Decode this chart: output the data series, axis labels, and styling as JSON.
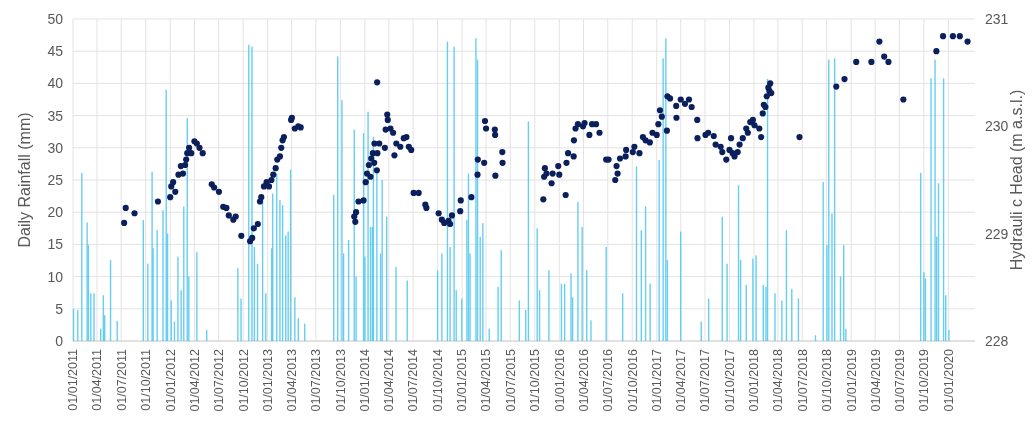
{
  "chart_data": {
    "type": "bar",
    "ylabel": "Daily Rainfall  (mm)",
    "y2label": "Hydrauli c Head (m a.s.l.)",
    "grid": true,
    "xlim": [
      "2011-01-01",
      "2020-04-10"
    ],
    "xticks": [
      {
        "value": "2011-01-01",
        "label": "01/01/2011"
      },
      {
        "value": "2011-04-01",
        "label": "01/04/2011"
      },
      {
        "value": "2011-07-01",
        "label": "01/07/2011"
      },
      {
        "value": "2011-10-01",
        "label": "01/10/2011"
      },
      {
        "value": "2012-01-01",
        "label": "01/01/2012"
      },
      {
        "value": "2012-04-01",
        "label": "01/04/2012"
      },
      {
        "value": "2012-07-01",
        "label": "01/07/2012"
      },
      {
        "value": "2012-10-01",
        "label": "01/10/2012"
      },
      {
        "value": "2013-01-01",
        "label": "01/01/2013"
      },
      {
        "value": "2013-04-01",
        "label": "01/04/2013"
      },
      {
        "value": "2013-07-01",
        "label": "01/07/2013"
      },
      {
        "value": "2013-10-01",
        "label": "01/10/2013"
      },
      {
        "value": "2014-01-01",
        "label": "01/01/2014"
      },
      {
        "value": "2014-04-01",
        "label": "01/04/2014"
      },
      {
        "value": "2014-07-01",
        "label": "01/07/2014"
      },
      {
        "value": "2014-10-01",
        "label": "01/10/2014"
      },
      {
        "value": "2015-01-01",
        "label": "01/01/2015"
      },
      {
        "value": "2015-04-01",
        "label": "01/04/2015"
      },
      {
        "value": "2015-07-01",
        "label": "01/07/2015"
      },
      {
        "value": "2015-10-01",
        "label": "01/10/2015"
      },
      {
        "value": "2016-01-01",
        "label": "01/01/2016"
      },
      {
        "value": "2016-04-01",
        "label": "01/04/2016"
      },
      {
        "value": "2016-07-01",
        "label": "01/07/2016"
      },
      {
        "value": "2016-10-01",
        "label": "01/10/2016"
      },
      {
        "value": "2017-01-01",
        "label": "01/01/2017"
      },
      {
        "value": "2017-04-01",
        "label": "01/04/2017"
      },
      {
        "value": "2017-07-01",
        "label": "01/07/2017"
      },
      {
        "value": "2017-10-01",
        "label": "01/10/2017"
      },
      {
        "value": "2018-01-01",
        "label": "01/01/2018"
      },
      {
        "value": "2018-04-01",
        "label": "01/04/2018"
      },
      {
        "value": "2018-07-01",
        "label": "01/07/2018"
      },
      {
        "value": "2018-10-01",
        "label": "01/10/2018"
      },
      {
        "value": "2019-01-01",
        "label": "01/01/2019"
      },
      {
        "value": "2019-04-01",
        "label": "01/04/2019"
      },
      {
        "value": "2019-07-01",
        "label": "01/07/2019"
      },
      {
        "value": "2019-10-01",
        "label": "01/10/2019"
      },
      {
        "value": "2020-01-01",
        "label": "01/01/2020"
      }
    ],
    "ylim": [
      0,
      50
    ],
    "yticks": [
      0,
      5,
      10,
      15,
      20,
      25,
      30,
      35,
      40,
      45,
      50
    ],
    "y2lim": [
      228,
      231
    ],
    "y2ticks": [
      228,
      229,
      230,
      231
    ],
    "series": [
      {
        "color": "#4cc6f0",
        "x": [
          "2011-01-03",
          "2011-01-19",
          "2011-02-03",
          "2011-02-23",
          "2011-02-28",
          "2011-03-09",
          "2011-03-21",
          "2011-04-15",
          "2011-04-25",
          "2011-04-30",
          "2011-05-22",
          "2011-06-16",
          "2011-09-22",
          "2011-10-09",
          "2011-10-25",
          "2011-10-29",
          "2011-11-13",
          "2011-12-05",
          "2011-12-17",
          "2011-12-22",
          "2012-01-05",
          "2012-01-17",
          "2012-01-30",
          "2012-02-11",
          "2012-02-21",
          "2012-03-05",
          "2012-03-11",
          "2012-04-10",
          "2012-05-17",
          "2012-09-11",
          "2012-09-23",
          "2012-10-22",
          "2012-11-03",
          "2012-11-12",
          "2012-11-24",
          "2012-12-13",
          "2012-12-25",
          "2013-01-16",
          "2013-01-20",
          "2013-02-04",
          "2013-02-16",
          "2013-02-26",
          "2013-03-10",
          "2013-03-19",
          "2013-03-28",
          "2013-04-13",
          "2013-04-26",
          "2013-05-20",
          "2013-09-06",
          "2013-09-21",
          "2013-10-07",
          "2013-10-13",
          "2013-11-01",
          "2013-11-22",
          "2013-11-29",
          "2013-12-27",
          "2014-01-01",
          "2014-01-13",
          "2014-01-22",
          "2014-01-29",
          "2014-02-02",
          "2014-02-15",
          "2014-03-01",
          "2014-03-07",
          "2014-03-24",
          "2014-04-28",
          "2014-06-09",
          "2014-10-01",
          "2014-10-17",
          "2014-11-07",
          "2014-11-17",
          "2014-12-02",
          "2014-12-10",
          "2014-12-31",
          "2015-01-19",
          "2015-01-25",
          "2015-01-31",
          "2015-02-22",
          "2015-02-28",
          "2015-03-10",
          "2015-03-20",
          "2015-04-13",
          "2015-05-16",
          "2015-05-28",
          "2015-08-04",
          "2015-08-28",
          "2015-09-07",
          "2015-10-10",
          "2015-10-19",
          "2015-11-23",
          "2016-01-09",
          "2016-01-21",
          "2016-02-14",
          "2016-02-20",
          "2016-03-11",
          "2016-03-27",
          "2016-04-13",
          "2016-04-29",
          "2016-06-25",
          "2016-08-26",
          "2016-10-17",
          "2016-11-04",
          "2016-11-20",
          "2016-12-07",
          "2017-01-10",
          "2017-01-25",
          "2017-02-04",
          "2017-02-10",
          "2017-04-01",
          "2017-06-17",
          "2017-07-15",
          "2017-09-04",
          "2017-09-22",
          "2017-11-04",
          "2017-11-12",
          "2017-12-03",
          "2017-12-28",
          "2018-01-09",
          "2018-02-05",
          "2018-02-15",
          "2018-02-21",
          "2018-03-21",
          "2018-04-16",
          "2018-05-03",
          "2018-05-23",
          "2018-06-17",
          "2018-08-20",
          "2018-09-18",
          "2018-10-02",
          "2018-10-09",
          "2018-10-21",
          "2018-10-31",
          "2018-11-22",
          "2018-12-04",
          "2018-12-12",
          "2019-09-19",
          "2019-10-01",
          "2019-10-07",
          "2019-10-28",
          "2019-11-12",
          "2019-11-18",
          "2019-11-25",
          "2019-12-14",
          "2019-12-22",
          "2020-01-03"
        ],
        "values": [
          5.0,
          4.8,
          26.1,
          18.4,
          14.9,
          7.4,
          7.4,
          1.9,
          7.1,
          4.0,
          12.6,
          3.1,
          18.8,
          12.0,
          26.3,
          14.4,
          17.2,
          20.3,
          39.0,
          16.7,
          6.3,
          3.0,
          13.1,
          7.9,
          20.9,
          34.6,
          10.0,
          13.8,
          1.7,
          11.3,
          6.6,
          46.0,
          45.7,
          14.6,
          12.0,
          21.9,
          7.4,
          14.4,
          22.9,
          26.0,
          21.9,
          21.1,
          16.4,
          17.0,
          26.6,
          6.8,
          3.5,
          2.7,
          22.7,
          44.2,
          37.4,
          13.6,
          15.7,
          32.8,
          10.0,
          32.3,
          13.1,
          35.6,
          17.7,
          17.7,
          31.7,
          26.0,
          13.6,
          25.0,
          19.3,
          11.5,
          9.4,
          11.0,
          13.6,
          46.5,
          14.6,
          45.7,
          7.9,
          6.6,
          18.8,
          26.0,
          13.6,
          47.0,
          43.7,
          16.2,
          18.3,
          1.9,
          8.4,
          14.1,
          6.3,
          4.8,
          34.1,
          17.5,
          7.9,
          11.0,
          8.9,
          8.9,
          10.5,
          6.8,
          21.6,
          17.7,
          11.0,
          3.2,
          14.6,
          7.4,
          27.1,
          17.2,
          20.9,
          8.9,
          28.1,
          43.9,
          47.0,
          12.6,
          17.0,
          3.0,
          6.6,
          19.3,
          12.0,
          24.2,
          12.6,
          8.7,
          12.8,
          13.3,
          8.7,
          8.4,
          40.7,
          7.4,
          6.3,
          17.2,
          8.1,
          6.6,
          0.9,
          24.7,
          14.9,
          43.7,
          19.8,
          43.9,
          10.0,
          14.9,
          1.9,
          26.1,
          10.7,
          9.7,
          40.8,
          43.7,
          16.2,
          24.5,
          40.8,
          7.1,
          1.7
        ]
      },
      {
        "type": "scatter",
        "axis": "y2",
        "marker": "circle",
        "color": "#0b1f5c",
        "x": [
          "2011-07-12",
          "2011-07-18",
          "2011-08-20",
          "2011-11-16",
          "2012-01-01",
          "2012-01-05",
          "2012-01-12",
          "2012-01-20",
          "2012-02-01",
          "2012-02-10",
          "2012-02-18",
          "2012-02-26",
          "2012-03-01",
          "2012-03-05",
          "2012-03-12",
          "2012-03-20",
          "2012-04-01",
          "2012-04-10",
          "2012-04-20",
          "2012-05-02",
          "2012-06-05",
          "2012-06-14",
          "2012-07-02",
          "2012-07-18",
          "2012-07-30",
          "2012-08-08",
          "2012-08-25",
          "2012-09-03",
          "2012-09-24",
          "2012-10-27",
          "2012-11-04",
          "2012-11-10",
          "2012-11-25",
          "2012-12-03",
          "2012-12-08",
          "2012-12-18",
          "2012-12-28",
          "2013-01-06",
          "2013-01-15",
          "2013-01-22",
          "2013-01-31",
          "2013-02-06",
          "2013-02-16",
          "2013-02-21",
          "2013-02-26",
          "2013-03-03",
          "2013-03-30",
          "2013-04-02",
          "2013-04-13",
          "2013-04-26",
          "2013-05-05",
          "2013-11-22",
          "2013-11-26",
          "2013-11-29",
          "2013-12-08",
          "2013-12-27",
          "2014-01-04",
          "2014-01-09",
          "2014-01-16",
          "2014-01-22",
          "2014-01-25",
          "2014-01-31",
          "2014-02-05",
          "2014-02-06",
          "2014-02-15",
          "2014-02-16",
          "2014-02-17",
          "2014-02-24",
          "2014-03-17",
          "2014-03-20",
          "2014-03-26",
          "2014-03-28",
          "2014-04-07",
          "2014-04-17",
          "2014-04-22",
          "2014-04-29",
          "2014-05-14",
          "2014-05-27",
          "2014-06-06",
          "2014-06-15",
          "2014-06-24",
          "2014-07-03",
          "2014-07-22",
          "2014-08-16",
          "2014-08-20",
          "2014-10-05",
          "2014-10-17",
          "2014-10-26",
          "2014-11-11",
          "2014-11-17",
          "2014-11-24",
          "2014-12-25",
          "2014-12-27",
          "2015-02-05",
          "2015-02-28",
          "2015-03-01",
          "2015-03-25",
          "2015-03-28",
          "2015-04-01",
          "2015-05-04",
          "2015-05-05",
          "2015-05-06",
          "2015-06-01",
          "2015-06-02",
          "2015-11-02",
          "2015-11-05",
          "2015-11-08",
          "2015-11-14",
          "2015-12-03",
          "2015-12-07",
          "2015-12-28",
          "2016-01-01",
          "2016-01-25",
          "2016-01-28",
          "2016-02-03",
          "2016-02-24",
          "2016-02-25",
          "2016-03-02",
          "2016-03-11",
          "2016-03-30",
          "2016-04-05",
          "2016-04-23",
          "2016-05-03",
          "2016-05-18",
          "2016-05-31",
          "2016-06-25",
          "2016-07-04",
          "2016-07-29",
          "2016-08-03",
          "2016-08-07",
          "2016-08-16",
          "2016-09-06",
          "2016-09-08",
          "2016-10-03",
          "2016-10-09",
          "2016-10-28",
          "2016-11-10",
          "2016-11-20",
          "2016-12-06",
          "2016-12-16",
          "2017-01-01",
          "2017-01-07",
          "2017-01-13",
          "2017-01-20",
          "2017-02-08",
          "2017-02-10",
          "2017-02-20",
          "2017-03-15",
          "2017-03-16",
          "2017-04-01",
          "2017-04-17",
          "2017-05-02",
          "2017-05-12",
          "2017-06-02",
          "2017-06-03",
          "2017-07-03",
          "2017-07-13",
          "2017-08-03",
          "2017-08-10",
          "2017-08-29",
          "2017-09-04",
          "2017-09-19",
          "2017-10-01",
          "2017-10-07",
          "2017-10-13",
          "2017-10-20",
          "2017-11-01",
          "2017-11-08",
          "2017-11-20",
          "2017-12-03",
          "2017-12-09",
          "2017-12-18",
          "2017-12-28",
          "2018-01-03",
          "2018-01-21",
          "2018-01-28",
          "2018-02-03",
          "2018-02-07",
          "2018-02-13",
          "2018-02-18",
          "2018-02-24",
          "2018-02-28",
          "2018-03-03",
          "2018-03-07",
          "2018-06-21",
          "2018-11-06",
          "2018-12-07",
          "2019-01-20",
          "2019-03-18",
          "2019-04-17",
          "2019-05-05",
          "2019-05-21",
          "2019-07-16",
          "2019-11-17",
          "2019-12-12",
          "2020-01-18",
          "2020-02-13",
          "2020-03-13"
        ],
        "values": [
          229.1,
          229.24,
          229.19,
          229.3,
          229.34,
          229.44,
          229.48,
          229.39,
          229.55,
          229.63,
          229.56,
          229.64,
          229.69,
          229.75,
          229.8,
          229.75,
          229.86,
          229.84,
          229.8,
          229.75,
          229.46,
          229.43,
          229.39,
          229.25,
          229.24,
          229.17,
          229.13,
          229.16,
          228.98,
          228.93,
          228.96,
          229.05,
          229.09,
          229.3,
          229.34,
          229.44,
          229.48,
          229.44,
          229.5,
          229.55,
          229.61,
          229.69,
          229.72,
          229.8,
          229.87,
          229.9,
          230.06,
          230.08,
          229.98,
          230.0,
          229.99,
          229.16,
          229.11,
          229.2,
          229.3,
          229.31,
          229.48,
          229.56,
          229.64,
          229.53,
          229.7,
          229.75,
          229.66,
          229.84,
          229.59,
          230.41,
          229.75,
          229.84,
          229.8,
          229.97,
          230.11,
          230.06,
          229.98,
          229.94,
          229.73,
          229.84,
          229.81,
          229.89,
          229.9,
          229.81,
          229.78,
          229.38,
          229.38,
          229.27,
          229.24,
          229.19,
          229.13,
          229.1,
          229.12,
          229.09,
          229.17,
          229.21,
          229.31,
          229.34,
          229.55,
          229.69,
          229.66,
          230.05,
          229.98,
          229.97,
          229.92,
          229.54,
          229.76,
          229.66,
          229.32,
          229.53,
          229.61,
          229.56,
          229.47,
          229.56,
          229.63,
          229.55,
          229.36,
          229.66,
          229.75,
          229.72,
          229.87,
          229.98,
          230.02,
          230.0,
          230.03,
          229.92,
          230.02,
          230.02,
          229.94,
          229.69,
          229.69,
          229.5,
          229.63,
          229.56,
          229.7,
          229.72,
          229.78,
          229.76,
          229.81,
          229.75,
          229.9,
          229.87,
          229.85,
          229.94,
          229.92,
          230.02,
          230.15,
          230.09,
          229.96,
          230.28,
          230.26,
          230.19,
          230.08,
          230.25,
          230.21,
          230.25,
          230.18,
          230.06,
          229.89,
          229.92,
          229.94,
          229.91,
          229.83,
          229.81,
          229.76,
          229.69,
          229.78,
          229.89,
          229.75,
          229.72,
          229.76,
          229.83,
          229.89,
          229.98,
          229.94,
          230.04,
          230.06,
          230.01,
          229.98,
          229.9,
          230.12,
          230.2,
          230.18,
          230.28,
          230.36,
          230.33,
          230.4,
          230.31,
          229.9,
          230.37,
          230.44,
          230.6,
          230.6,
          230.79,
          230.65,
          230.6,
          230.25,
          230.7,
          230.84,
          230.84,
          230.84,
          230.79
        ]
      }
    ]
  }
}
